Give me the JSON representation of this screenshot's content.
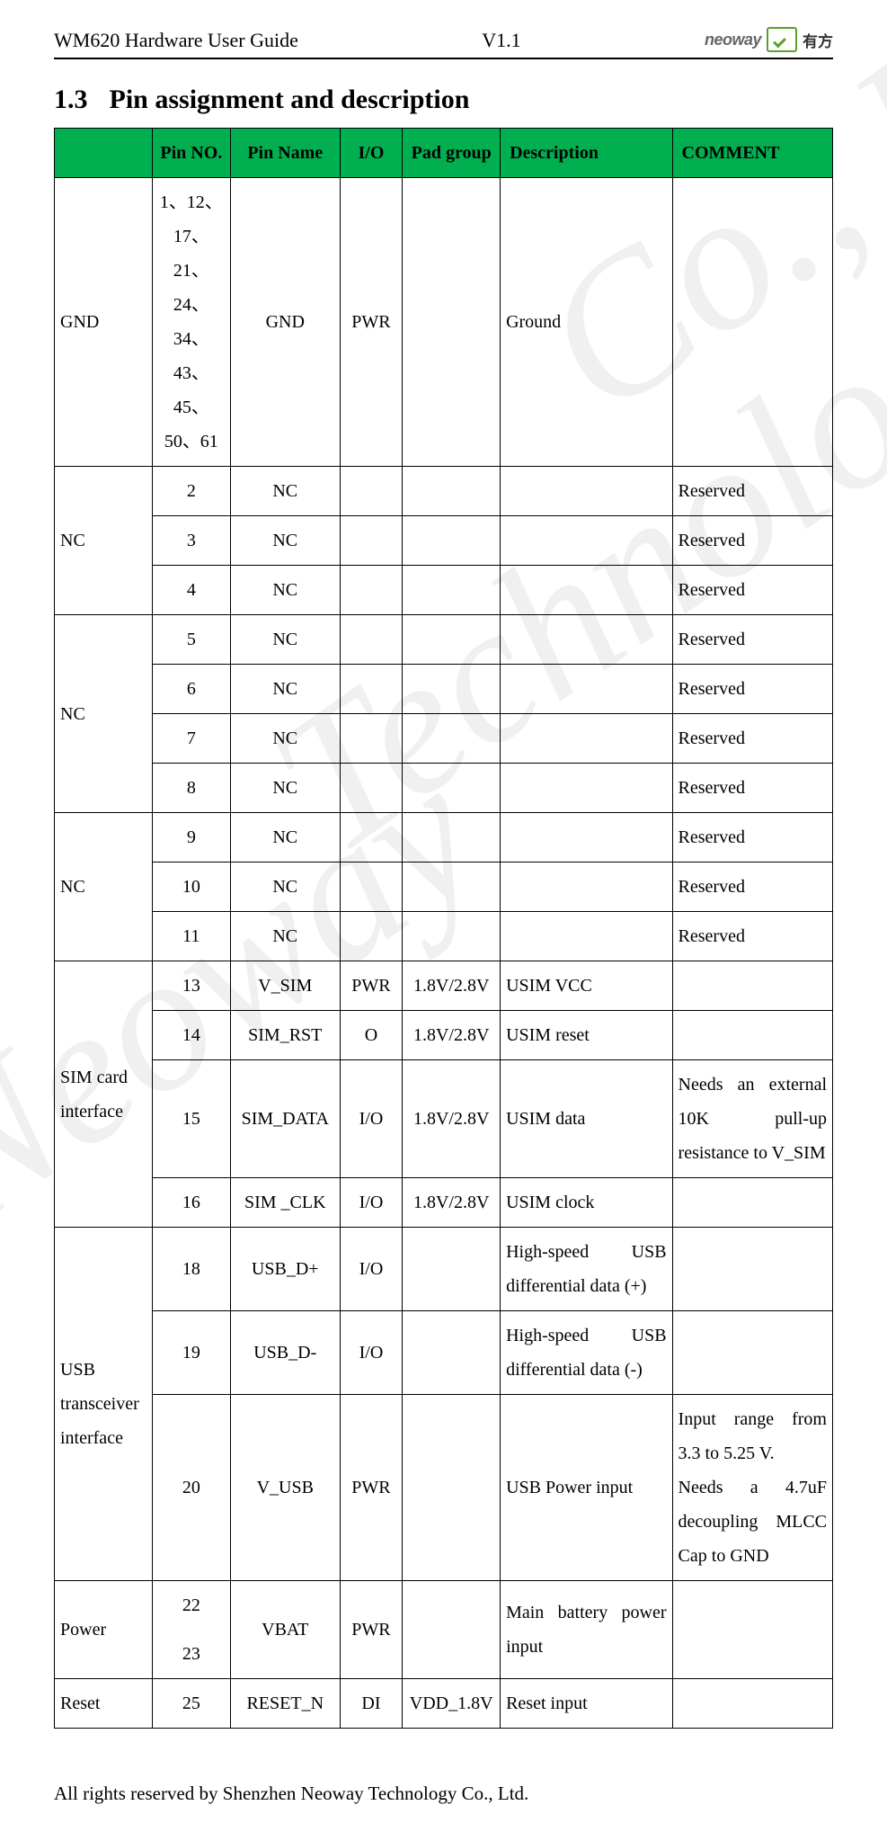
{
  "header": {
    "doc_title": "WM620 Hardware User Guide",
    "version": "V1.1",
    "logo_en": "neoway",
    "logo_cn": "有方"
  },
  "section": {
    "number": "1.3",
    "title": "Pin assignment and description"
  },
  "table": {
    "header_bg": "#00b050",
    "columns": {
      "group": "",
      "pin_no": "Pin NO.",
      "pin_name": "Pin Name",
      "io": "I/O",
      "pad_group": "Pad group",
      "description": "Description",
      "comment": "COMMENT"
    },
    "groups": [
      {
        "label": "GND",
        "rows": [
          {
            "pin": "1、12、17、21、24、34、43、45、50、61",
            "name": "GND",
            "io": "PWR",
            "pad": "",
            "desc": "Ground",
            "comment": ""
          }
        ]
      },
      {
        "label": "NC",
        "rows": [
          {
            "pin": "2",
            "name": "NC",
            "io": "",
            "pad": "",
            "desc": "",
            "comment": "Reserved"
          },
          {
            "pin": "3",
            "name": "NC",
            "io": "",
            "pad": "",
            "desc": "",
            "comment": "Reserved"
          },
          {
            "pin": "4",
            "name": "NC",
            "io": "",
            "pad": "",
            "desc": "",
            "comment": "Reserved"
          }
        ]
      },
      {
        "label": "NC",
        "rows": [
          {
            "pin": "5",
            "name": "NC",
            "io": "",
            "pad": "",
            "desc": "",
            "comment": "Reserved"
          },
          {
            "pin": "6",
            "name": "NC",
            "io": "",
            "pad": "",
            "desc": "",
            "comment": "Reserved"
          },
          {
            "pin": "7",
            "name": "NC",
            "io": "",
            "pad": "",
            "desc": "",
            "comment": "Reserved"
          },
          {
            "pin": "8",
            "name": "NC",
            "io": "",
            "pad": "",
            "desc": "",
            "comment": "Reserved"
          }
        ]
      },
      {
        "label": "NC",
        "rows": [
          {
            "pin": "9",
            "name": "NC",
            "io": "",
            "pad": "",
            "desc": "",
            "comment": "Reserved"
          },
          {
            "pin": "10",
            "name": "NC",
            "io": "",
            "pad": "",
            "desc": "",
            "comment": "Reserved"
          },
          {
            "pin": "11",
            "name": "NC",
            "io": "",
            "pad": "",
            "desc": "",
            "comment": "Reserved"
          }
        ]
      },
      {
        "label": "SIM card interface",
        "rows": [
          {
            "pin": "13",
            "name": "V_SIM",
            "io": "PWR",
            "pad": "1.8V/2.8V",
            "desc": "USIM VCC",
            "comment": ""
          },
          {
            "pin": "14",
            "name": "SIM_RST",
            "io": "O",
            "pad": "1.8V/2.8V",
            "desc": "USIM reset",
            "comment": ""
          },
          {
            "pin": "15",
            "name": "SIM_DATA",
            "io": "I/O",
            "pad": "1.8V/2.8V",
            "desc": "USIM data",
            "comment": "Needs an external 10K pull-up resistance to V_SIM",
            "comment_small": true
          },
          {
            "pin": "16",
            "name": "SIM _CLK",
            "io": "I/O",
            "pad": "1.8V/2.8V",
            "desc": "USIM clock",
            "comment": ""
          }
        ]
      },
      {
        "label": "USB transceiver interface",
        "rows": [
          {
            "pin": "18",
            "name": "USB_D+",
            "io": "I/O",
            "pad": "",
            "desc": "High-speed USB differential data (+)",
            "desc_justify": true,
            "comment": ""
          },
          {
            "pin": "19",
            "name": "USB_D-",
            "io": "I/O",
            "pad": "",
            "desc": "High-speed USB differential data (-)",
            "desc_justify": true,
            "comment": ""
          },
          {
            "pin": "20",
            "name": "V_USB",
            "io": "PWR",
            "pad": "",
            "desc": "USB Power input",
            "comment": "Input range from 3.3 to 5.25 V.\nNeeds a 4.7uF decoupling MLCC Cap to GND",
            "comment_small": true
          }
        ]
      },
      {
        "label": "Power",
        "split_pin": true,
        "rows": [
          {
            "pin": "22",
            "name": "VBAT",
            "io": "PWR",
            "pad": "",
            "desc": "Main battery power input",
            "comment": ""
          },
          {
            "pin": "23"
          }
        ]
      },
      {
        "label": "Reset",
        "rows": [
          {
            "pin": "25",
            "name": "RESET_N",
            "io": "DI",
            "pad": "VDD_1.8V",
            "desc": "Reset input",
            "comment": ""
          }
        ]
      }
    ]
  },
  "footer": "All rights reserved by Shenzhen Neoway Technology Co., Ltd."
}
